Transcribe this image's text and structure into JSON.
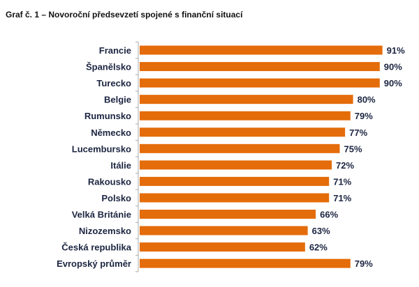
{
  "chart_data": {
    "type": "bar",
    "orientation": "horizontal",
    "title": "Graf č. 1 – Novoroční předsevzetí spojené s finanční situací",
    "categories": [
      "Francie",
      "Španělsko",
      "Turecko",
      "Belgie",
      "Rumunsko",
      "Německo",
      "Lucembursko",
      "Itálie",
      "Rakousko",
      "Polsko",
      "Velká Británie",
      "Nizozemsko",
      "Česká republika",
      "Evropský průměr"
    ],
    "values": [
      91,
      90,
      90,
      80,
      79,
      77,
      75,
      72,
      71,
      71,
      66,
      63,
      62,
      79
    ],
    "value_labels": [
      "91%",
      "90%",
      "90%",
      "80%",
      "79%",
      "77%",
      "75%",
      "72%",
      "71%",
      "71%",
      "66%",
      "63%",
      "62%",
      "79%"
    ],
    "xlabel": "",
    "ylabel": "",
    "xlim": [
      0,
      100
    ],
    "grid": false,
    "legend": "none",
    "bar_color": "#e46c0a"
  }
}
